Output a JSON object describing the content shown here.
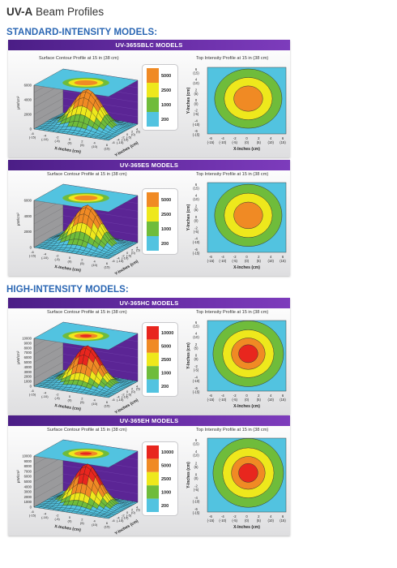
{
  "header": {
    "prefix": "UV-A",
    "title": "Beam Profiles"
  },
  "sections": {
    "standard": "STANDARD-INTENSITY MODELS:",
    "high": "HIGH-INTENSITY MODELS:"
  },
  "labels": {
    "surface": "Surface Contour Profile at 15 in (38 cm)",
    "top": "Top Intensity Profile at 15 in (38 cm)",
    "x_axis": "X-Inches (cm)",
    "y_axis": "Y-Inches (cm)",
    "z_unit": "µW/cm²"
  },
  "colors": {
    "purple": "#5b2595",
    "cyan": "#52c3e0",
    "green": "#6fbc3b",
    "yellow": "#eee81c",
    "orange": "#f08a24",
    "red": "#e8261e",
    "blue_title": "#2a66b3"
  },
  "panels": [
    {
      "model": "UV-365SBLC MODELS",
      "legend": [
        "5000",
        "2500",
        "1000",
        "200"
      ],
      "z_ticks": [
        "6000",
        "4000",
        "2000",
        "0"
      ]
    },
    {
      "model": "UV-365ES MODELS",
      "legend": [
        "5000",
        "2500",
        "1000",
        "200"
      ],
      "z_ticks": [
        "6000",
        "4000",
        "2000",
        "0"
      ]
    },
    {
      "model": "UV-365HC MODELS",
      "legend": [
        "10000",
        "5000",
        "2500",
        "1000",
        "200"
      ],
      "z_ticks": [
        "10000",
        "9000",
        "8000",
        "7000",
        "6000",
        "5000",
        "4000",
        "3000",
        "2000",
        "1000",
        "0"
      ]
    },
    {
      "model": "UV-365EH MODELS",
      "legend": [
        "10000",
        "5000",
        "2500",
        "1000",
        "200"
      ],
      "z_ticks": [
        "10000",
        "9000",
        "8000",
        "7000",
        "6000",
        "5000",
        "4000",
        "3000",
        "2000",
        "1000",
        "0"
      ]
    }
  ],
  "axis_ticks": {
    "side": [
      "6",
      "(15)",
      "4",
      "(10)",
      "2",
      "(5)",
      "0",
      "(0)",
      "-2",
      "(-5)",
      "-4",
      "(-10)",
      "-6",
      "(-15)"
    ],
    "bottom": [
      "-6",
      "-4",
      "-2",
      "0",
      "2",
      "4",
      "6"
    ],
    "bottom_cm": [
      "(-15)",
      "(-10)",
      "(-5)",
      "(0)",
      "(5)",
      "(10)",
      "(15)"
    ]
  }
}
